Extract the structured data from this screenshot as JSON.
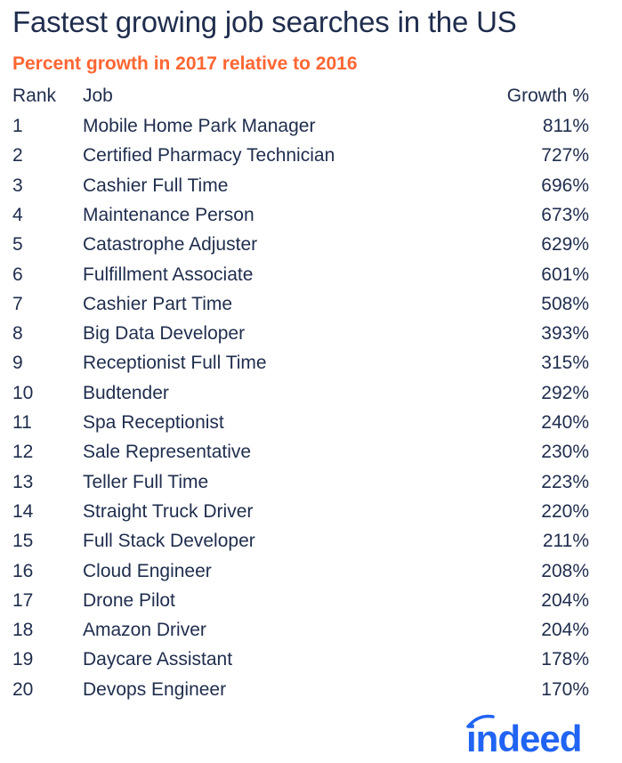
{
  "chart_data": {
    "type": "table",
    "title": "Fastest growing job searches in the US",
    "subtitle": "Percent growth in 2017 relative to 2016",
    "columns": [
      "Rank",
      "Job",
      "Growth %"
    ],
    "rows": [
      {
        "rank": "1",
        "job": "Mobile Home Park Manager",
        "growth": "811%"
      },
      {
        "rank": "2",
        "job": "Certified Pharmacy Technician",
        "growth": "727%"
      },
      {
        "rank": "3",
        "job": "Cashier Full Time",
        "growth": "696%"
      },
      {
        "rank": "4",
        "job": "Maintenance Person",
        "growth": "673%"
      },
      {
        "rank": "5",
        "job": "Catastrophe Adjuster",
        "growth": "629%"
      },
      {
        "rank": "6",
        "job": "Fulfillment Associate",
        "growth": "601%"
      },
      {
        "rank": "7",
        "job": "Cashier Part Time",
        "growth": "508%"
      },
      {
        "rank": "8",
        "job": "Big Data Developer",
        "growth": "393%"
      },
      {
        "rank": "9",
        "job": "Receptionist Full Time",
        "growth": "315%"
      },
      {
        "rank": "10",
        "job": "Budtender",
        "growth": "292%"
      },
      {
        "rank": "11",
        "job": "Spa Receptionist",
        "growth": "240%"
      },
      {
        "rank": "12",
        "job": "Sale Representative",
        "growth": "230%"
      },
      {
        "rank": "13",
        "job": "Teller Full Time",
        "growth": "223%"
      },
      {
        "rank": "14",
        "job": "Straight Truck Driver",
        "growth": "220%"
      },
      {
        "rank": "15",
        "job": "Full Stack Developer",
        "growth": "211%"
      },
      {
        "rank": "16",
        "job": "Cloud Engineer",
        "growth": "208%"
      },
      {
        "rank": "17",
        "job": "Drone Pilot",
        "growth": "204%"
      },
      {
        "rank": "18",
        "job": "Amazon Driver",
        "growth": "204%"
      },
      {
        "rank": "19",
        "job": "Daycare Assistant",
        "growth": "178%"
      },
      {
        "rank": "20",
        "job": "Devops Engineer",
        "growth": "170%"
      }
    ]
  },
  "logo": {
    "text": "indeed",
    "color": "#2164f3"
  },
  "colors": {
    "text": "#1f2d4d",
    "accent": "#ff6633"
  }
}
